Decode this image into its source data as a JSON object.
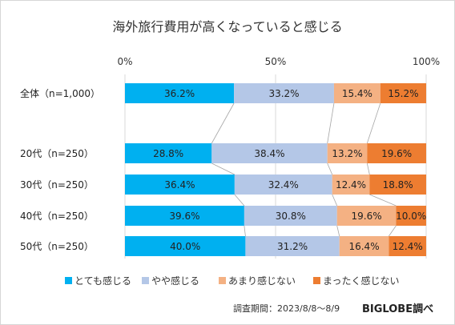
{
  "chart_data": {
    "type": "bar",
    "stacked": true,
    "orientation": "horizontal",
    "normalized": true,
    "title": "海外旅行費用が高くなっていると感じる",
    "x_ticks": [
      "0%",
      "50%",
      "100%"
    ],
    "xlim": [
      0,
      100
    ],
    "categories": [
      "全体（n=1,000）",
      "20代（n=250）",
      "30代（n=250）",
      "40代（n=250）",
      "50代（n=250）"
    ],
    "series": [
      {
        "name": "とても感じる",
        "color": "#00b0f0",
        "values": [
          36.2,
          28.8,
          36.4,
          39.6,
          40.0
        ],
        "labels": [
          "36.2%",
          "28.8%",
          "36.4%",
          "39.6%",
          "40.0%"
        ]
      },
      {
        "name": "やや感じる",
        "color": "#b4c7e7",
        "values": [
          33.2,
          38.4,
          32.4,
          30.8,
          31.2
        ],
        "labels": [
          "33.2%",
          "38.4%",
          "32.4%",
          "30.8%",
          "31.2%"
        ]
      },
      {
        "name": "あまり感じない",
        "color": "#f4b183",
        "values": [
          15.4,
          13.2,
          12.4,
          19.6,
          16.4
        ],
        "labels": [
          "15.4%",
          "13.2%",
          "12.4%",
          "19.6%",
          "16.4%"
        ]
      },
      {
        "name": "まったく感じない",
        "color": "#ed7d31",
        "values": [
          15.2,
          19.6,
          18.8,
          10.0,
          12.4
        ],
        "labels": [
          "15.2%",
          "19.6%",
          "18.8%",
          "10.0%",
          "12.4%"
        ]
      }
    ],
    "grid": true,
    "legend_position": "bottom"
  },
  "footer": {
    "period": "調査期間：2023/8/8～8/9",
    "brand": "BIGLOBE調べ"
  }
}
